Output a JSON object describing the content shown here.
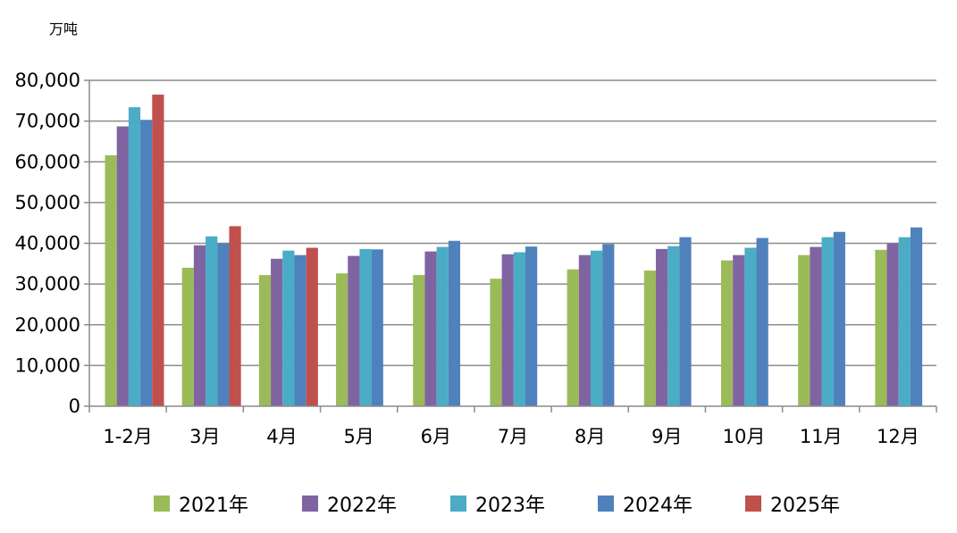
{
  "chart_data": {
    "type": "bar",
    "unit_label": "万吨",
    "categories": [
      "1-2月",
      "3月",
      "4月",
      "5月",
      "6月",
      "7月",
      "8月",
      "9月",
      "10月",
      "11月",
      "12月"
    ],
    "ylim": [
      0,
      80000
    ],
    "yticks": [
      "0",
      "10,000",
      "20,000",
      "30,000",
      "40,000",
      "50,000",
      "60,000",
      "70,000",
      "80,000"
    ],
    "grid": true,
    "legend_position": "bottom",
    "series": [
      {
        "name": "2021年",
        "color": "#9bbb59",
        "values": [
          61600,
          34000,
          32200,
          32600,
          32200,
          31300,
          33600,
          33300,
          35800,
          37100,
          38400
        ]
      },
      {
        "name": "2022年",
        "color": "#8064a2",
        "values": [
          68700,
          39500,
          36200,
          36900,
          38000,
          37300,
          37100,
          38600,
          37100,
          39100,
          40000
        ]
      },
      {
        "name": "2023年",
        "color": "#4bacc6",
        "values": [
          73400,
          41700,
          38200,
          38600,
          39100,
          37800,
          38200,
          39300,
          38900,
          41500,
          41500
        ]
      },
      {
        "name": "2024年",
        "color": "#4f81bd",
        "values": [
          70300,
          40000,
          37100,
          38500,
          40600,
          39200,
          39800,
          41500,
          41300,
          42800,
          43900
        ]
      },
      {
        "name": "2025年",
        "color": "#c0504d",
        "values": [
          76500,
          44200,
          38900,
          null,
          null,
          null,
          null,
          null,
          null,
          null,
          null
        ]
      }
    ]
  }
}
